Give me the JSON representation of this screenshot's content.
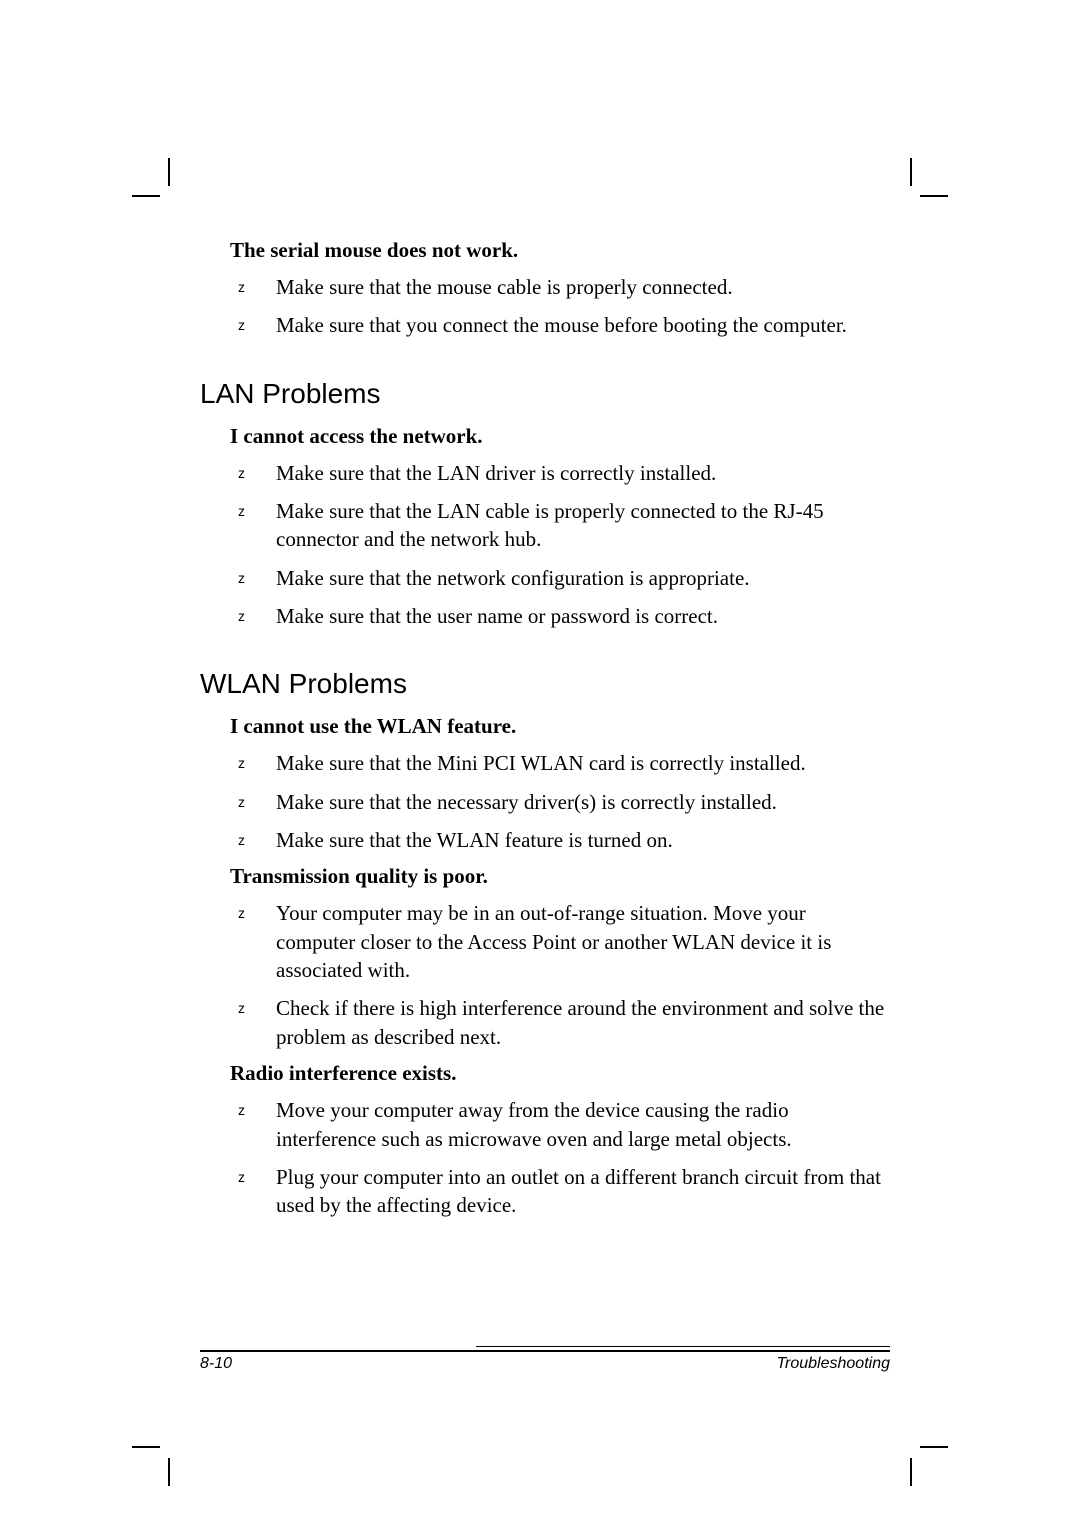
{
  "colors": {
    "text": "#000000",
    "background": "#ffffff"
  },
  "fonts": {
    "body_family": "Times New Roman",
    "heading_family": "Arial",
    "body_size_pt": 16,
    "heading_size_pt": 21,
    "footer_size_pt": 12
  },
  "serial_mouse": {
    "title": "The serial mouse does not work.",
    "items": [
      "Make sure that the mouse cable is properly connected.",
      "Make sure that you connect the mouse before booting the computer."
    ]
  },
  "lan": {
    "heading": "LAN Problems",
    "subtitle": "I cannot access the network.",
    "items": [
      "Make sure that the LAN driver is correctly installed.",
      "Make sure that the LAN cable is properly connected to the RJ-45 connector and the network hub.",
      "Make sure that the network configuration is appropriate.",
      "Make sure that the user name or password is correct."
    ]
  },
  "wlan": {
    "heading": "WLAN Problems",
    "sub1": "I cannot use the WLAN feature.",
    "items1": [
      "Make sure that the Mini PCI WLAN card is correctly installed.",
      "Make sure that the necessary driver(s) is correctly installed.",
      "Make sure that the WLAN feature is turned on."
    ],
    "sub2": "Transmission quality is poor.",
    "items2": [
      "Your computer may be in an out-of-range situation. Move your computer closer to the Access Point or another WLAN device it is associated with.",
      "Check if there is high interference around the environment and solve the problem as described next."
    ],
    "sub3": "Radio interference exists.",
    "items3": [
      "Move your computer away from the device causing the radio interference such as microwave oven and large metal objects.",
      "Plug your computer into an outlet on a different branch circuit from that used by the affecting device."
    ]
  },
  "bullet": "z",
  "footer": {
    "page": "8-10",
    "chapter": "Troubleshooting"
  }
}
